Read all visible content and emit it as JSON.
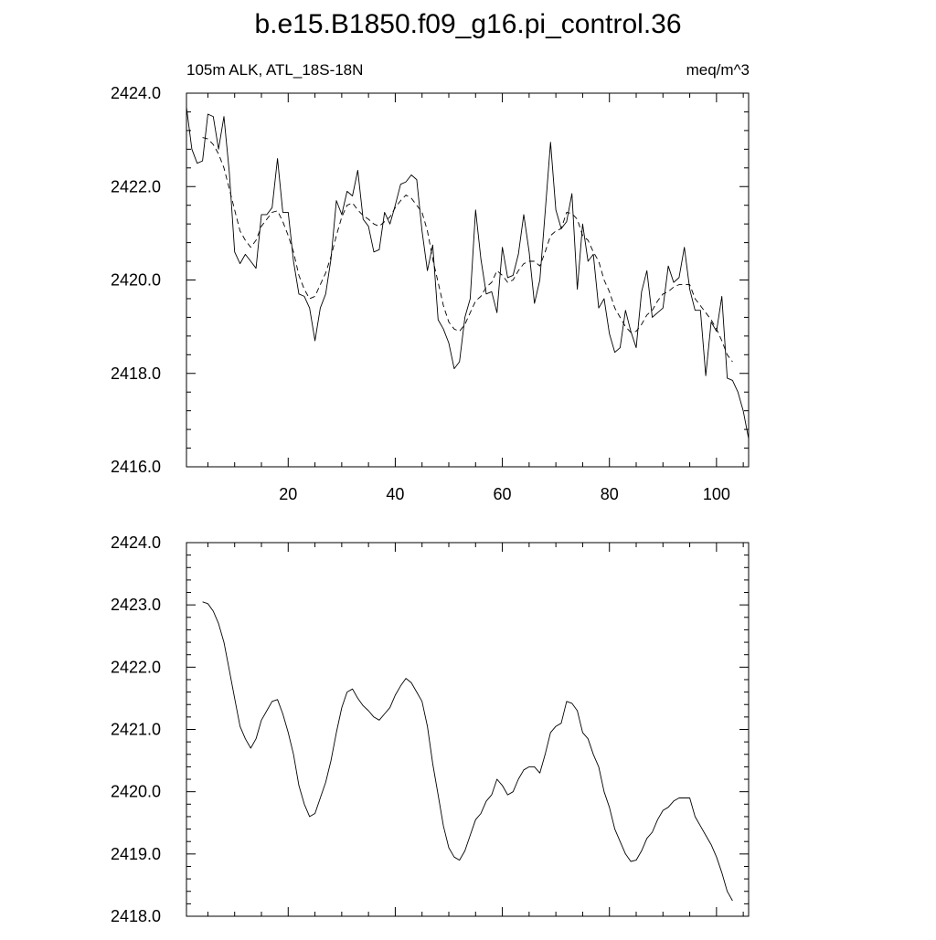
{
  "title": "b.e15.B1850.f09_g16.pi_control.36",
  "colors": {
    "line": "#000000",
    "background": "#ffffff"
  },
  "chart_data": [
    {
      "type": "line",
      "subtitle_left": "105m ALK, ATL_18S-18N",
      "subtitle_right": "meq/m^3",
      "xlim": [
        1,
        106
      ],
      "ylim": [
        2416,
        2424
      ],
      "x_ticks": [
        20,
        40,
        60,
        80,
        100
      ],
      "x_tick_labels": [
        "20",
        "40",
        "60",
        "80",
        "100"
      ],
      "y_ticks": [
        2416,
        2418,
        2420,
        2422,
        2424
      ],
      "y_tick_labels": [
        "2416.0",
        "2418.0",
        "2420.0",
        "2422.0",
        "2424.0"
      ],
      "grid": false,
      "series": [
        {
          "style": "solid",
          "x": [
            1,
            2,
            3,
            4,
            5,
            6,
            7,
            8,
            9,
            10,
            11,
            12,
            13,
            14,
            15,
            16,
            17,
            18,
            19,
            20,
            21,
            22,
            23,
            24,
            25,
            26,
            27,
            28,
            29,
            30,
            31,
            32,
            33,
            34,
            35,
            36,
            37,
            38,
            39,
            40,
            41,
            42,
            43,
            44,
            45,
            46,
            47,
            48,
            49,
            50,
            51,
            52,
            53,
            54,
            55,
            56,
            57,
            58,
            59,
            60,
            61,
            62,
            63,
            64,
            65,
            66,
            67,
            68,
            69,
            70,
            71,
            72,
            73,
            74,
            75,
            76,
            77,
            78,
            79,
            80,
            81,
            82,
            83,
            84,
            85,
            86,
            87,
            88,
            89,
            90,
            91,
            92,
            93,
            94,
            95,
            96,
            97,
            98,
            99,
            100,
            101,
            102,
            103,
            104,
            105,
            106
          ],
          "values": [
            2423.7,
            2422.8,
            2422.5,
            2422.55,
            2423.55,
            2423.5,
            2422.8,
            2423.5,
            2422.3,
            2420.6,
            2420.35,
            2420.55,
            2420.4,
            2420.25,
            2421.4,
            2421.4,
            2421.55,
            2422.6,
            2421.45,
            2421.45,
            2420.4,
            2419.7,
            2419.65,
            2419.4,
            2418.7,
            2419.4,
            2419.7,
            2420.45,
            2421.7,
            2421.4,
            2421.9,
            2421.8,
            2422.35,
            2421.3,
            2421.15,
            2420.6,
            2420.65,
            2421.45,
            2421.2,
            2421.6,
            2422.05,
            2422.1,
            2422.25,
            2422.15,
            2421.05,
            2420.2,
            2420.75,
            2419.15,
            2418.95,
            2418.65,
            2418.1,
            2418.25,
            2419.2,
            2419.6,
            2421.5,
            2420.45,
            2419.7,
            2419.75,
            2419.3,
            2420.7,
            2420.05,
            2420.1,
            2420.55,
            2421.4,
            2420.6,
            2419.5,
            2420.0,
            2421.45,
            2422.95,
            2421.5,
            2421.1,
            2421.25,
            2421.85,
            2419.8,
            2421.2,
            2420.4,
            2420.55,
            2419.4,
            2419.6,
            2418.85,
            2418.45,
            2418.55,
            2419.35,
            2418.9,
            2418.55,
            2419.75,
            2420.2,
            2419.2,
            2419.3,
            2419.4,
            2420.3,
            2419.95,
            2420.05,
            2420.7,
            2419.8,
            2419.35,
            2419.35,
            2417.95,
            2419.1,
            2418.9,
            2419.65,
            2417.9,
            2417.85,
            2417.6,
            2417.2,
            2416.6
          ]
        },
        {
          "style": "dashed",
          "x": [
            4,
            5,
            6,
            7,
            8,
            9,
            10,
            11,
            12,
            13,
            14,
            15,
            16,
            17,
            18,
            19,
            20,
            21,
            22,
            23,
            24,
            25,
            26,
            27,
            28,
            29,
            30,
            31,
            32,
            33,
            34,
            35,
            36,
            37,
            38,
            39,
            40,
            41,
            42,
            43,
            44,
            45,
            46,
            47,
            48,
            49,
            50,
            51,
            52,
            53,
            54,
            55,
            56,
            57,
            58,
            59,
            60,
            61,
            62,
            63,
            64,
            65,
            66,
            67,
            68,
            69,
            70,
            71,
            72,
            73,
            74,
            75,
            76,
            77,
            78,
            79,
            80,
            81,
            82,
            83,
            84,
            85,
            86,
            87,
            88,
            89,
            90,
            91,
            92,
            93,
            94,
            95,
            96,
            97,
            98,
            99,
            100,
            101,
            102,
            103
          ],
          "values": [
            2423.05,
            2423.02,
            2422.9,
            2422.7,
            2422.4,
            2421.95,
            2421.5,
            2421.05,
            2420.85,
            2420.7,
            2420.85,
            2421.15,
            2421.3,
            2421.45,
            2421.48,
            2421.25,
            2420.95,
            2420.6,
            2420.1,
            2419.8,
            2419.6,
            2419.65,
            2419.9,
            2420.15,
            2420.5,
            2420.95,
            2421.35,
            2421.6,
            2421.65,
            2421.5,
            2421.38,
            2421.3,
            2421.2,
            2421.15,
            2421.25,
            2421.35,
            2421.55,
            2421.7,
            2421.82,
            2421.75,
            2421.6,
            2421.45,
            2421.05,
            2420.45,
            2419.95,
            2419.45,
            2419.1,
            2418.95,
            2418.9,
            2419.05,
            2419.3,
            2419.55,
            2419.65,
            2419.85,
            2419.95,
            2420.2,
            2420.1,
            2419.95,
            2420.0,
            2420.2,
            2420.35,
            2420.4,
            2420.4,
            2420.3,
            2420.6,
            2420.95,
            2421.05,
            2421.1,
            2421.45,
            2421.42,
            2421.3,
            2420.95,
            2420.85,
            2420.6,
            2420.4,
            2420.0,
            2419.75,
            2419.4,
            2419.2,
            2419.0,
            2418.88,
            2418.9,
            2419.05,
            2419.25,
            2419.35,
            2419.55,
            2419.7,
            2419.75,
            2419.85,
            2419.9,
            2419.9,
            2419.9,
            2419.6,
            2419.45,
            2419.3,
            2419.15,
            2418.95,
            2418.7,
            2418.4,
            2418.25
          ]
        }
      ]
    },
    {
      "type": "line",
      "xlim": [
        1,
        106
      ],
      "ylim": [
        2418,
        2424
      ],
      "x_ticks": [
        20,
        40,
        60,
        80,
        100
      ],
      "x_tick_labels": [],
      "y_ticks": [
        2418,
        2419,
        2420,
        2421,
        2422,
        2423,
        2424
      ],
      "y_tick_labels": [
        "2418.0",
        "2419.0",
        "2420.0",
        "2421.0",
        "2422.0",
        "2423.0",
        "2424.0"
      ],
      "grid": false,
      "series": [
        {
          "style": "solid",
          "x": [
            4,
            5,
            6,
            7,
            8,
            9,
            10,
            11,
            12,
            13,
            14,
            15,
            16,
            17,
            18,
            19,
            20,
            21,
            22,
            23,
            24,
            25,
            26,
            27,
            28,
            29,
            30,
            31,
            32,
            33,
            34,
            35,
            36,
            37,
            38,
            39,
            40,
            41,
            42,
            43,
            44,
            45,
            46,
            47,
            48,
            49,
            50,
            51,
            52,
            53,
            54,
            55,
            56,
            57,
            58,
            59,
            60,
            61,
            62,
            63,
            64,
            65,
            66,
            67,
            68,
            69,
            70,
            71,
            72,
            73,
            74,
            75,
            76,
            77,
            78,
            79,
            80,
            81,
            82,
            83,
            84,
            85,
            86,
            87,
            88,
            89,
            90,
            91,
            92,
            93,
            94,
            95,
            96,
            97,
            98,
            99,
            100,
            101,
            102,
            103
          ],
          "values": [
            2423.05,
            2423.02,
            2422.9,
            2422.7,
            2422.4,
            2421.95,
            2421.5,
            2421.05,
            2420.85,
            2420.7,
            2420.85,
            2421.15,
            2421.3,
            2421.45,
            2421.48,
            2421.25,
            2420.95,
            2420.6,
            2420.1,
            2419.8,
            2419.6,
            2419.65,
            2419.9,
            2420.15,
            2420.5,
            2420.95,
            2421.35,
            2421.6,
            2421.65,
            2421.5,
            2421.38,
            2421.3,
            2421.2,
            2421.15,
            2421.25,
            2421.35,
            2421.55,
            2421.7,
            2421.82,
            2421.75,
            2421.6,
            2421.45,
            2421.05,
            2420.45,
            2419.95,
            2419.45,
            2419.1,
            2418.95,
            2418.9,
            2419.05,
            2419.3,
            2419.55,
            2419.65,
            2419.85,
            2419.95,
            2420.2,
            2420.1,
            2419.95,
            2420.0,
            2420.2,
            2420.35,
            2420.4,
            2420.4,
            2420.3,
            2420.6,
            2420.95,
            2421.05,
            2421.1,
            2421.45,
            2421.42,
            2421.3,
            2420.95,
            2420.85,
            2420.6,
            2420.4,
            2420.0,
            2419.75,
            2419.4,
            2419.2,
            2419.0,
            2418.88,
            2418.9,
            2419.05,
            2419.25,
            2419.35,
            2419.55,
            2419.7,
            2419.75,
            2419.85,
            2419.9,
            2419.9,
            2419.9,
            2419.6,
            2419.45,
            2419.3,
            2419.15,
            2418.95,
            2418.7,
            2418.4,
            2418.25
          ]
        }
      ]
    }
  ]
}
